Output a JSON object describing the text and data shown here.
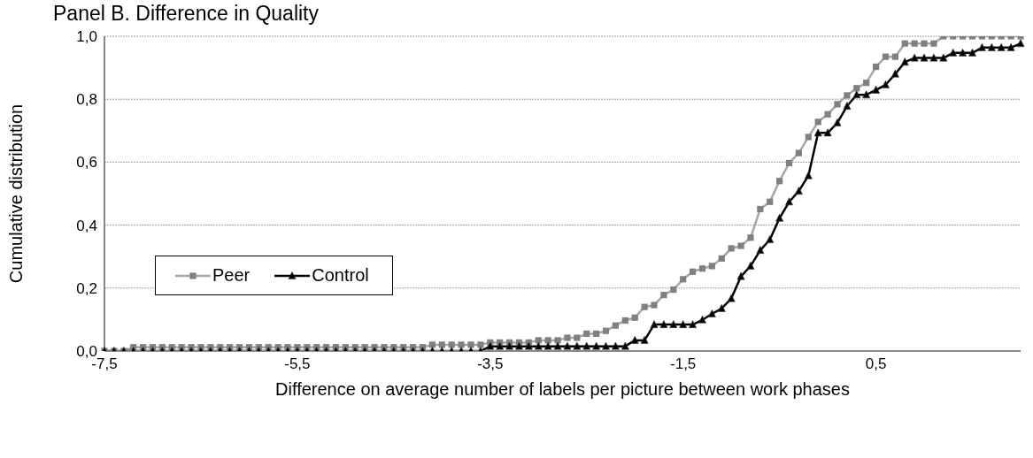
{
  "chart_data": {
    "type": "line",
    "title": "Panel B. Difference in Quality",
    "xlabel": "Difference on average number of labels per picture between work phases",
    "ylabel": "Cumulative distribution",
    "categories": [
      "-7,5",
      null,
      null,
      null,
      null,
      null,
      null,
      null,
      null,
      null,
      null,
      null,
      null,
      null,
      null,
      null,
      null,
      null,
      null,
      null,
      "-5,5",
      null,
      null,
      null,
      null,
      null,
      null,
      null,
      null,
      null,
      null,
      null,
      null,
      null,
      null,
      null,
      null,
      null,
      null,
      null,
      "-3,5",
      null,
      null,
      null,
      null,
      null,
      null,
      null,
      null,
      null,
      null,
      null,
      null,
      null,
      null,
      null,
      null,
      null,
      null,
      null,
      "-1,5",
      null,
      null,
      null,
      null,
      null,
      null,
      null,
      null,
      null,
      null,
      null,
      null,
      null,
      null,
      null,
      null,
      null,
      null,
      null,
      "0,5",
      null,
      null,
      null,
      null,
      null,
      null,
      null,
      null,
      null,
      null,
      null,
      null,
      null,
      null,
      null
    ],
    "series": [
      {
        "name": "Peer",
        "color": "#808080",
        "marker": "square",
        "values": [
          0,
          0,
          0,
          0.012,
          0.012,
          0.012,
          0.012,
          0.012,
          0.012,
          0.012,
          0.012,
          0.012,
          0.012,
          0.012,
          0.012,
          0.012,
          0.012,
          0.012,
          0.012,
          0.012,
          0.012,
          0.012,
          0.012,
          0.012,
          0.012,
          0.012,
          0.012,
          0.012,
          0.012,
          0.012,
          0.012,
          0.012,
          0.012,
          0.012,
          0.02,
          0.02,
          0.02,
          0.02,
          0.02,
          0.02,
          0.027,
          0.027,
          0.027,
          0.027,
          0.027,
          0.034,
          0.034,
          0.034,
          0.042,
          0.042,
          0.055,
          0.055,
          0.064,
          0.081,
          0.097,
          0.106,
          0.14,
          0.146,
          0.178,
          0.195,
          0.228,
          0.252,
          0.262,
          0.27,
          0.294,
          0.326,
          0.334,
          0.36,
          0.451,
          0.474,
          0.54,
          0.597,
          0.629,
          0.68,
          0.728,
          0.752,
          0.784,
          0.812,
          0.835,
          0.852,
          0.903,
          0.935,
          0.935,
          0.977,
          0.977,
          0.977,
          0.977,
          1,
          1,
          1,
          1,
          1,
          1,
          1,
          1,
          1
        ]
      },
      {
        "name": "Control",
        "color": "#000000",
        "marker": "triangle",
        "values": [
          0,
          0,
          0,
          0,
          0,
          0,
          0,
          0,
          0,
          0,
          0,
          0,
          0,
          0,
          0,
          0,
          0,
          0,
          0,
          0,
          0,
          0,
          0,
          0,
          0,
          0,
          0,
          0,
          0,
          0,
          0,
          0,
          0,
          0,
          0,
          0,
          0,
          0,
          0,
          0,
          0.015,
          0.015,
          0.015,
          0.015,
          0.015,
          0.015,
          0.015,
          0.015,
          0.015,
          0.015,
          0.015,
          0.015,
          0.015,
          0.015,
          0.015,
          0.034,
          0.034,
          0.084,
          0.084,
          0.084,
          0.084,
          0.084,
          0.099,
          0.118,
          0.135,
          0.167,
          0.237,
          0.27,
          0.32,
          0.354,
          0.422,
          0.474,
          0.508,
          0.557,
          0.693,
          0.693,
          0.725,
          0.778,
          0.814,
          0.814,
          0.829,
          0.846,
          0.88,
          0.918,
          0.931,
          0.931,
          0.931,
          0.931,
          0.947,
          0.947,
          0.947,
          0.964,
          0.964,
          0.964,
          0.964,
          0.977
        ]
      }
    ],
    "ylim": [
      0,
      1
    ],
    "yticks": [
      {
        "value": 0,
        "label": "0,0"
      },
      {
        "value": 0.2,
        "label": "0,2"
      },
      {
        "value": 0.4,
        "label": "0,4"
      },
      {
        "value": 0.6,
        "label": "0,6"
      },
      {
        "value": 0.8,
        "label": "0,8"
      },
      {
        "value": 1,
        "label": "1,0"
      }
    ],
    "grid": "y",
    "legend": "left",
    "line_style": "solid"
  }
}
